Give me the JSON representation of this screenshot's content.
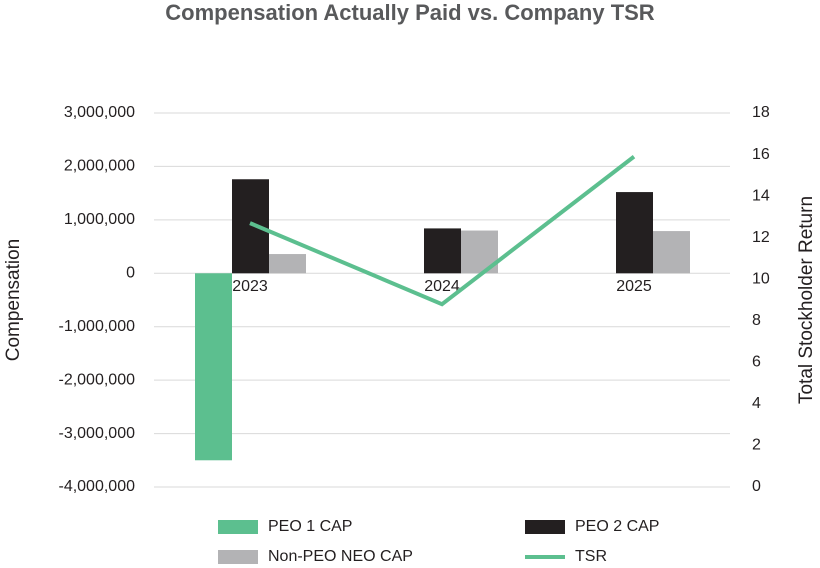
{
  "chart_data": {
    "type": "bar",
    "title": "Compensation Actually Paid vs. Company TSR",
    "y_label": "Compensation",
    "y2_label": "Total Stockholder Return",
    "categories": [
      "2023",
      "2024",
      "2025"
    ],
    "series": [
      {
        "name": "PEO 1 CAP",
        "color": "#5cbf8f",
        "values": [
          -3500000,
          null,
          null
        ]
      },
      {
        "name": "PEO 2 CAP",
        "color": "#231f20",
        "values": [
          1760000,
          840000,
          1520000
        ]
      },
      {
        "name": "Non-PEO NEO CAP",
        "color": "#b3b3b5",
        "values": [
          360000,
          800000,
          790000
        ]
      },
      {
        "name": "TSR",
        "color": "#5cbf8f",
        "type": "line",
        "axis": "y2",
        "values": [
          12.7,
          8.8,
          15.9
        ]
      }
    ],
    "ylim": [
      -4000000,
      3000000
    ],
    "yticks": [
      {
        "value": -4000000,
        "label": "-4,000,000"
      },
      {
        "value": -3000000,
        "label": "-3,000,000"
      },
      {
        "value": -2000000,
        "label": "-2,000,000"
      },
      {
        "value": -1000000,
        "label": "-1,000,000"
      },
      0,
      {
        "value": 1000000,
        "label": "1,000,000"
      },
      {
        "value": 2000000,
        "label": "2,000,000"
      },
      {
        "value": 3000000,
        "label": "3,000,000"
      }
    ],
    "y2lim": [
      0,
      18
    ],
    "y2ticks": [
      0,
      2,
      4,
      6,
      8,
      10,
      12,
      14,
      16,
      18
    ],
    "grid": true,
    "legend": "bottom"
  }
}
